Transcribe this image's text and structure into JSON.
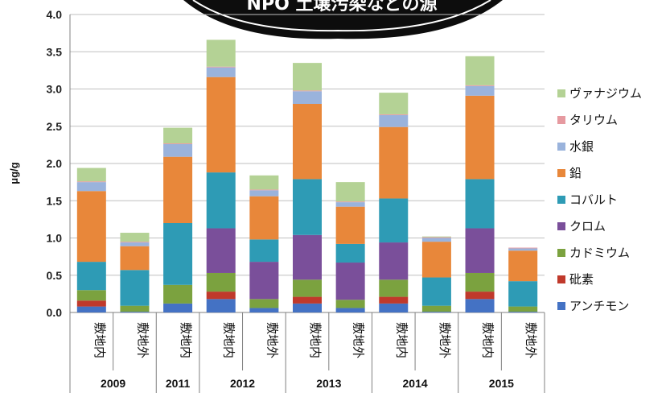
{
  "banner": {
    "text": "NPO 土壌汚染などの源"
  },
  "chart_data": {
    "type": "bar",
    "stacked": true,
    "ylabel": "μg/g",
    "ylim": [
      0,
      4.0
    ],
    "yticks": [
      "0.0",
      "0.5",
      "1.0",
      "1.5",
      "2.0",
      "2.5",
      "3.0",
      "3.5",
      "4.0"
    ],
    "categories": [
      "敷地内",
      "敷地外",
      "敷地内",
      "敷地内",
      "敷地外",
      "敷地内",
      "敷地外",
      "敷地内",
      "敷地外",
      "敷地内",
      "敷地外"
    ],
    "groups": [
      {
        "label": "2009",
        "count": 2
      },
      {
        "label": "2011",
        "count": 1
      },
      {
        "label": "2012",
        "count": 2
      },
      {
        "label": "2013",
        "count": 2
      },
      {
        "label": "2014",
        "count": 2
      },
      {
        "label": "2015",
        "count": 2
      }
    ],
    "series": [
      {
        "name": "アンチモン",
        "color": "#4472c4",
        "values": [
          0.08,
          0.01,
          0.12,
          0.18,
          0.06,
          0.12,
          0.06,
          0.12,
          0.01,
          0.18,
          0.01
        ]
      },
      {
        "name": "砒素",
        "color": "#c0392b",
        "values": [
          0.08,
          0.0,
          0.0,
          0.1,
          0.0,
          0.09,
          0.0,
          0.09,
          0.0,
          0.1,
          0.0
        ]
      },
      {
        "name": "カドミウム",
        "color": "#7ba23f",
        "values": [
          0.14,
          0.08,
          0.25,
          0.25,
          0.12,
          0.23,
          0.11,
          0.23,
          0.08,
          0.25,
          0.07
        ]
      },
      {
        "name": "クロム",
        "color": "#7a4f9a",
        "values": [
          0.0,
          0.0,
          0.0,
          0.6,
          0.5,
          0.6,
          0.5,
          0.5,
          0.0,
          0.6,
          0.0
        ]
      },
      {
        "name": "コバルト",
        "color": "#2e9bb5",
        "values": [
          0.38,
          0.48,
          0.83,
          0.75,
          0.3,
          0.75,
          0.25,
          0.59,
          0.38,
          0.66,
          0.34
        ]
      },
      {
        "name": "鉛",
        "color": "#e8873a",
        "values": [
          0.95,
          0.32,
          0.89,
          1.28,
          0.58,
          1.01,
          0.5,
          0.96,
          0.48,
          1.12,
          0.41
        ]
      },
      {
        "name": "水銀",
        "color": "#9ab3dc",
        "values": [
          0.12,
          0.05,
          0.17,
          0.13,
          0.08,
          0.17,
          0.06,
          0.16,
          0.05,
          0.13,
          0.03
        ]
      },
      {
        "name": "タリウム",
        "color": "#e69aa0",
        "values": [
          0.01,
          0.01,
          0.01,
          0.01,
          0.01,
          0.01,
          0.01,
          0.01,
          0.01,
          0.01,
          0.01
        ]
      },
      {
        "name": "ヴァナジウム",
        "color": "#b4d295",
        "values": [
          0.18,
          0.12,
          0.21,
          0.36,
          0.19,
          0.37,
          0.26,
          0.29,
          0.01,
          0.39,
          0.0
        ]
      }
    ],
    "legend_position": "right",
    "grid": true
  }
}
